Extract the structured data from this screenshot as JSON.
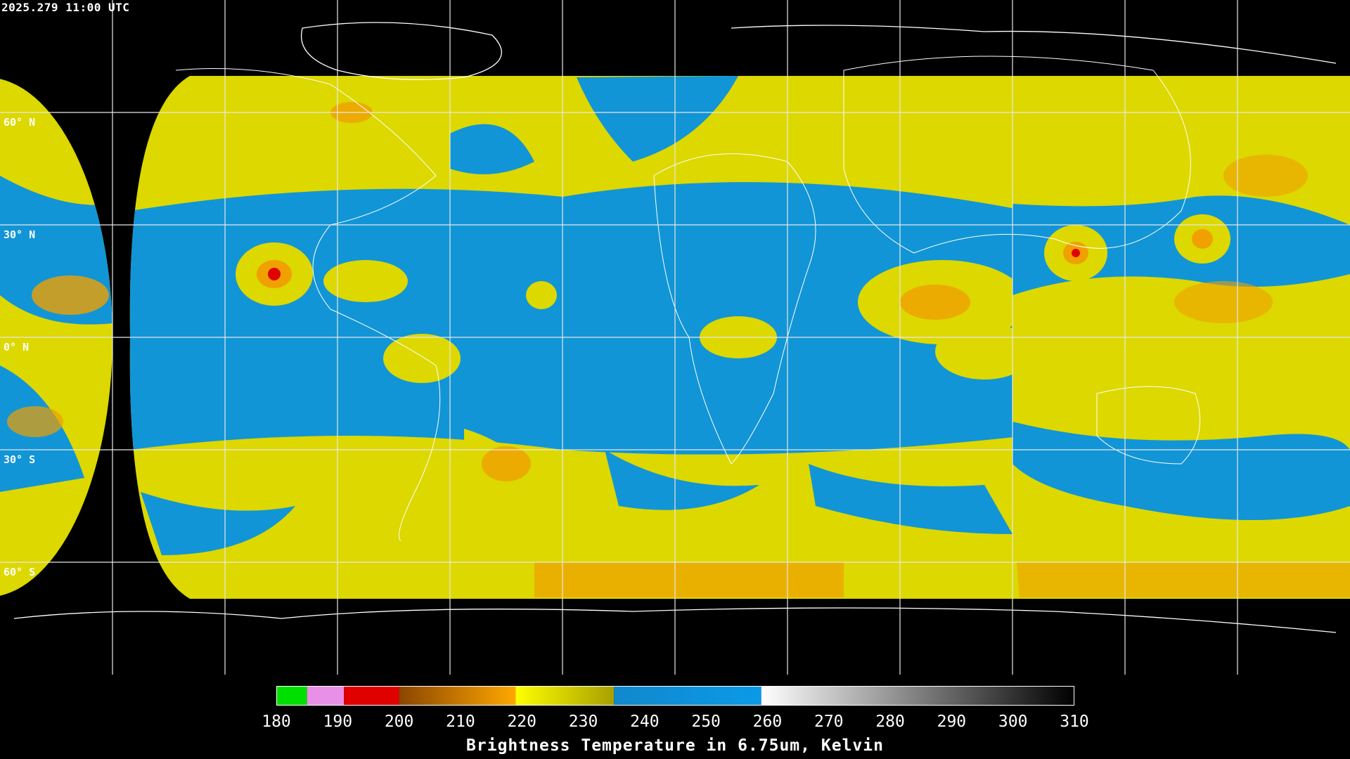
{
  "header": {
    "timestamp": "2025.279 11:00 UTC"
  },
  "map": {
    "projection": "equirectangular",
    "lat_labels": [
      "60° N",
      "30° N",
      "0° N",
      "30° S",
      "60° S"
    ],
    "lon_range": [
      -180,
      180
    ],
    "lat_range": [
      -90,
      90
    ],
    "colors": {
      "background": "#000000",
      "dry_blue": "#1195d6",
      "moist_yellow": "#dcd800",
      "cold_orange": "#f0a000",
      "very_cold_red": "#e00000",
      "coastline": "#ffffff",
      "grid": "#e8e8e8"
    }
  },
  "colorbar": {
    "title": "Brightness Temperature in 6.75um, Kelvin",
    "min": 180,
    "max": 310,
    "ticks": [
      "180",
      "190",
      "200",
      "210",
      "220",
      "230",
      "240",
      "250",
      "260",
      "270",
      "280",
      "290",
      "300",
      "310"
    ],
    "segments": [
      {
        "from": 180,
        "to": 185,
        "color": "#00e000"
      },
      {
        "from": 185,
        "to": 191,
        "color": "#e890e8"
      },
      {
        "from": 191,
        "to": 200,
        "color": "#e00000"
      },
      {
        "from": 200,
        "to": 219,
        "gradient": [
          "#8b4500",
          "#ffa800"
        ]
      },
      {
        "from": 219,
        "to": 235,
        "gradient": [
          "#ffff00",
          "#a8a000"
        ]
      },
      {
        "from": 235,
        "to": 259,
        "gradient": [
          "#1188cc",
          "#0a9ae8"
        ]
      },
      {
        "from": 259,
        "to": 310,
        "gradient": [
          "#ffffff",
          "#000000"
        ]
      }
    ]
  }
}
